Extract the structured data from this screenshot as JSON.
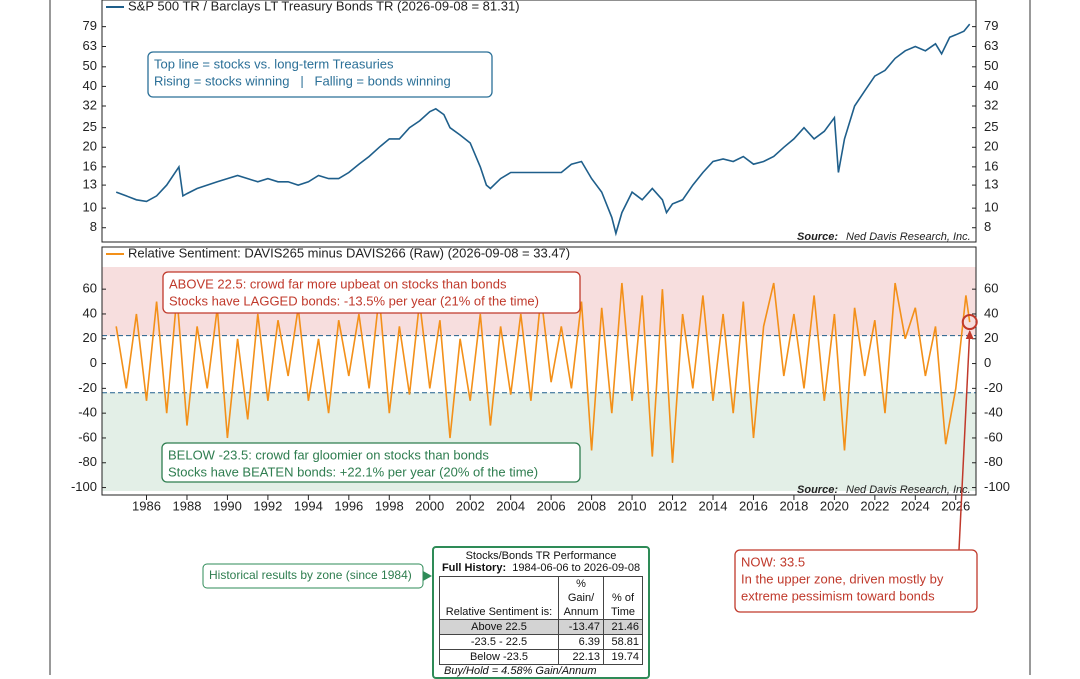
{
  "chart_data": [
    {
      "type": "line",
      "log": true,
      "legend": "S&P 500 TR / Barclays LT Treasury Bonds TR (2026-09-08 = 81.31)",
      "source": "Source:",
      "source_name": "Ned Davis Research, Inc.",
      "xlim": [
        1983.8,
        2027.0
      ],
      "ylim": [
        6.8,
        107
      ],
      "yticks": [
        8,
        10,
        13,
        16,
        20,
        25,
        32,
        40,
        50,
        63,
        79
      ],
      "series": [
        {
          "name": "S&P 500 TR / Barclays LT Treasury Bonds TR",
          "color": "#1f5f8b",
          "x": [
            1984.5,
            1985,
            1985.5,
            1986,
            1986.5,
            1987,
            1987.6,
            1987.8,
            1988,
            1988.5,
            1989,
            1989.5,
            1990,
            1990.5,
            1991,
            1991.5,
            1992,
            1992.5,
            1993,
            1993.5,
            1994,
            1994.5,
            1995,
            1995.5,
            1996,
            1996.5,
            1997,
            1997.5,
            1998,
            1998.5,
            1999,
            1999.5,
            2000,
            2000.3,
            2000.7,
            2001,
            2001.5,
            2002,
            2002.5,
            2002.8,
            2003,
            2003.5,
            2004,
            2004.5,
            2005,
            2005.5,
            2006,
            2006.5,
            2007,
            2007.5,
            2008,
            2008.5,
            2009,
            2009.2,
            2009.5,
            2010,
            2010.5,
            2011,
            2011.5,
            2011.7,
            2012,
            2012.5,
            2013,
            2013.5,
            2014,
            2014.5,
            2015,
            2015.5,
            2016,
            2016.5,
            2017,
            2017.5,
            2018,
            2018.5,
            2019,
            2019.5,
            2020,
            2020.2,
            2020.5,
            2021,
            2021.5,
            2022,
            2022.5,
            2023,
            2023.5,
            2024,
            2024.5,
            2025,
            2025.3,
            2025.7,
            2026,
            2026.4,
            2026.69
          ],
          "values": [
            12,
            11.5,
            11,
            10.8,
            11.5,
            13,
            16,
            11.5,
            11.8,
            12.5,
            13,
            13.5,
            14,
            14.5,
            14,
            13.5,
            14,
            13.5,
            13.5,
            13,
            13.5,
            14.5,
            14,
            14,
            15,
            16.5,
            18,
            20,
            22,
            22,
            25,
            27,
            30,
            31,
            29,
            25,
            23,
            21,
            16,
            13,
            12.5,
            14,
            15,
            15,
            15,
            15,
            15,
            15,
            16.5,
            17,
            14,
            12,
            9,
            7.5,
            9.5,
            12,
            11,
            12.5,
            11,
            9.5,
            10.5,
            11,
            13,
            15,
            17,
            17.5,
            17,
            18,
            16.5,
            17,
            18,
            20,
            22,
            25,
            22,
            24,
            28,
            15,
            22,
            32,
            38,
            45,
            48,
            55,
            60,
            63,
            60,
            65,
            58,
            70,
            72,
            75,
            81.31
          ]
        }
      ],
      "annotations": [
        {
          "color": "#2a6f97",
          "lines": [
            "Top line = stocks vs. long-term Treasuries",
            "Rising = stocks winning   |   Falling = bonds winning"
          ]
        }
      ]
    },
    {
      "type": "line",
      "log": false,
      "legend": "Relative Sentiment: DAVIS265 minus DAVIS266 (Raw) (2026-09-08 = 33.47)",
      "source": "Source:",
      "source_name": "Ned Davis Research, Inc.",
      "xlim": [
        1983.8,
        2027.0
      ],
      "ylim": [
        -106,
        94
      ],
      "xticks": [
        1986,
        1988,
        1990,
        1992,
        1994,
        1996,
        1998,
        2000,
        2002,
        2004,
        2006,
        2008,
        2010,
        2012,
        2014,
        2016,
        2018,
        2020,
        2022,
        2024,
        2026
      ],
      "yticks": [
        -100,
        -80,
        -60,
        -40,
        -20,
        0,
        20,
        40,
        60
      ],
      "zones": {
        "upper": 22.5,
        "lower": -23.5,
        "upper_color": "#f7dede",
        "lower_color": "#e3efe7",
        "line_color": "#1f5f8b"
      },
      "highlight_last": true,
      "highlight_color": "#c0392b",
      "series": [
        {
          "name": "Relative Sentiment: DAVIS265 minus DAVIS266 (Raw)",
          "color": "#f39019",
          "x": [
            1984.5,
            1985,
            1985.5,
            1986,
            1986.5,
            1987,
            1987.5,
            1988,
            1988.5,
            1989,
            1989.5,
            1990,
            1990.5,
            1991,
            1991.5,
            1992,
            1992.5,
            1993,
            1993.5,
            1994,
            1994.5,
            1995,
            1995.5,
            1996,
            1996.5,
            1997,
            1997.5,
            1998,
            1998.5,
            1999,
            1999.5,
            2000,
            2000.5,
            2001,
            2001.5,
            2002,
            2002.5,
            2003,
            2003.5,
            2004,
            2004.5,
            2005,
            2005.5,
            2006,
            2006.5,
            2007,
            2007.5,
            2008,
            2008.5,
            2009,
            2009.5,
            2010,
            2010.5,
            2011,
            2011.5,
            2012,
            2012.5,
            2013,
            2013.5,
            2014,
            2014.5,
            2015,
            2015.5,
            2016,
            2016.5,
            2017,
            2017.5,
            2018,
            2018.5,
            2019,
            2019.5,
            2020,
            2020.5,
            2021,
            2021.5,
            2022,
            2022.5,
            2023,
            2023.5,
            2024,
            2024.5,
            2025,
            2025.5,
            2026,
            2026.5,
            2026.69
          ],
          "values": [
            30,
            -20,
            40,
            -30,
            50,
            -40,
            55,
            -50,
            30,
            -20,
            45,
            -60,
            20,
            -45,
            40,
            -30,
            35,
            -10,
            45,
            -30,
            20,
            -40,
            35,
            -10,
            40,
            -20,
            55,
            -40,
            30,
            -25,
            50,
            -20,
            35,
            -60,
            20,
            -30,
            40,
            -50,
            30,
            -25,
            40,
            -30,
            55,
            -15,
            30,
            -20,
            50,
            -70,
            45,
            -40,
            65,
            -30,
            55,
            -75,
            60,
            -80,
            40,
            -20,
            55,
            -30,
            40,
            -40,
            50,
            -60,
            30,
            65,
            -10,
            40,
            -20,
            55,
            -30,
            40,
            -70,
            45,
            -10,
            35,
            -40,
            65,
            20,
            45,
            -10,
            30,
            -65,
            -20,
            55,
            33.47
          ]
        }
      ],
      "annotations": [
        {
          "color": "#c0392b",
          "lines": [
            "ABOVE 22.5: crowd far more upbeat on stocks than bonds",
            "Stocks have LAGGED bonds: -13.5% per year (21% of the time)"
          ]
        },
        {
          "color": "#2e7d4f",
          "lines": [
            "BELOW -23.5: crowd far gloomier on stocks than bonds",
            "Stocks have BEATEN bonds: +22.1% per year (20% of the time)"
          ]
        },
        {
          "color": "#c0392b",
          "lines": [
            "NOW: 33.5",
            "In the upper zone, driven mostly by",
            "extreme pessimism toward bonds"
          ]
        }
      ]
    }
  ],
  "table": {
    "title": "Stocks/Bonds TR Performance",
    "subtitle_label": "Full History:",
    "subtitle": "1984-06-06 to 2026-09-08",
    "columns": [
      "Relative Sentiment is:",
      "% Gain/ Annum",
      "% of Time"
    ],
    "rows": [
      [
        "Above 22.5",
        "-13.47",
        "21.46"
      ],
      [
        "-23.5 - 22.5",
        "6.39",
        "58.81"
      ],
      [
        "Below -23.5",
        "22.13",
        "19.74"
      ]
    ],
    "footer": "Buy/Hold = 4.58% Gain/Annum",
    "callout": "Historical results by zone (since 1984)"
  }
}
